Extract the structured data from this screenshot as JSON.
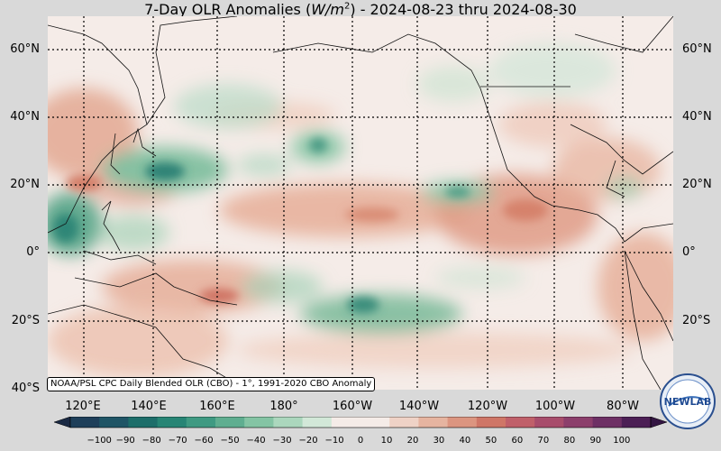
{
  "title_prefix": "7-Day OLR Anomalies (",
  "title_units": "W/m",
  "title_sup": "2",
  "title_suffix": ") - 2024-08-23 thru 2024-08-30",
  "lat_labels": [
    "60°N",
    "40°N",
    "20°N",
    "0°",
    "20°S",
    "40°S"
  ],
  "lon_labels": [
    "120°E",
    "140°E",
    "160°E",
    "180°",
    "160°W",
    "140°W",
    "120°W",
    "100°W",
    "80°W"
  ],
  "credit": "NOAA/PSL CPC Daily Blended OLR (CBO) - 1°, 1991-2020 CBO Anomaly",
  "logo_text": "NEWLAB",
  "colorbar": {
    "ticks": [
      "−100",
      "−90",
      "−80",
      "−70",
      "−60",
      "−50",
      "−40",
      "−30",
      "−20",
      "−10",
      "0",
      "10",
      "20",
      "30",
      "40",
      "50",
      "60",
      "70",
      "80",
      "90",
      "100"
    ],
    "colors": [
      "#1a2a44",
      "#1e3f5a",
      "#1f5566",
      "#1d6e6a",
      "#278575",
      "#3f9a82",
      "#5fae90",
      "#84c4a4",
      "#abd7bd",
      "#d2e8d8",
      "#f5ece8",
      "#f5ece8",
      "#efd2c6",
      "#e6b4a0",
      "#dc9580",
      "#cf7667",
      "#c0606a",
      "#a84d6c",
      "#8c3f6c",
      "#6e3065",
      "#4c1f55",
      "#331542"
    ]
  },
  "map_extent": {
    "lon_min": 110,
    "lon_max": 290,
    "lat_min": -40,
    "lat_max": 68
  },
  "anomaly_regions": [
    {
      "sign": "negative",
      "lat": 22,
      "lon": 145,
      "strength": -55
    },
    {
      "sign": "negative",
      "lat": 10,
      "lon": 112,
      "strength": -50
    },
    {
      "sign": "negative",
      "lat": -12,
      "lon": 200,
      "strength": -45
    },
    {
      "sign": "negative",
      "lat": 20,
      "lon": 225,
      "strength": -35
    },
    {
      "sign": "negative",
      "lat": 30,
      "lon": 185,
      "strength": -40
    },
    {
      "sign": "negative",
      "lat": 48,
      "lon": 170,
      "strength": -25
    },
    {
      "sign": "positive",
      "lat": 10,
      "lon": 210,
      "strength": 35
    },
    {
      "sign": "positive",
      "lat": 12,
      "lon": 255,
      "strength": 40
    },
    {
      "sign": "positive",
      "lat": 40,
      "lon": 118,
      "strength": 35
    },
    {
      "sign": "positive",
      "lat": -15,
      "lon": 160,
      "strength": 40
    },
    {
      "sign": "positive",
      "lat": -25,
      "lon": 140,
      "strength": 25
    },
    {
      "sign": "positive",
      "lat": 25,
      "lon": 280,
      "strength": 30
    }
  ]
}
